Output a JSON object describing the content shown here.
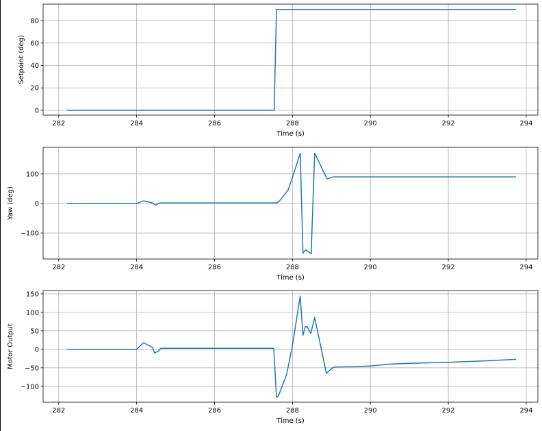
{
  "chart_data": [
    {
      "type": "line",
      "xlabel": "Time (s)",
      "ylabel": "Setpoint (deg)",
      "xlim": [
        281.6,
        294.3
      ],
      "ylim": [
        -4.3,
        94.7
      ],
      "xticks": [
        282,
        284,
        286,
        288,
        290,
        292,
        294
      ],
      "yticks": [
        0,
        20,
        40,
        60,
        80
      ],
      "grid": true,
      "color": "#1f77b4",
      "x": [
        282.21,
        287.53,
        287.59,
        293.74
      ],
      "y": [
        0,
        0,
        90,
        90
      ]
    },
    {
      "type": "line",
      "xlabel": "Time (s)",
      "ylabel": "Yaw (deg)",
      "xlim": [
        281.6,
        294.3
      ],
      "ylim": [
        -188,
        190
      ],
      "xticks": [
        282,
        284,
        286,
        288,
        290,
        292,
        294
      ],
      "yticks": [
        -100,
        0,
        100
      ],
      "grid": true,
      "color": "#1f77b4",
      "x": [
        282.21,
        284.0,
        284.18,
        284.41,
        284.48,
        284.6,
        287.6,
        287.67,
        287.89,
        288.03,
        288.2,
        288.27,
        288.34,
        288.48,
        288.57,
        288.89,
        289.05,
        293.74
      ],
      "y": [
        0,
        0,
        9,
        2,
        -6,
        2,
        2,
        9,
        46,
        101,
        170,
        -168,
        -157,
        -170,
        170,
        83,
        90,
        90
      ]
    },
    {
      "type": "line",
      "xlabel": "Time (s)",
      "ylabel": "Motor Output",
      "xlim": [
        281.6,
        294.3
      ],
      "ylim": [
        -143,
        159
      ],
      "xticks": [
        282,
        284,
        286,
        288,
        290,
        292,
        294
      ],
      "yticks": [
        -100,
        -50,
        0,
        50,
        100,
        150
      ],
      "grid": true,
      "color": "#1f77b4",
      "x": [
        282.21,
        284.0,
        284.18,
        284.41,
        284.46,
        284.57,
        284.62,
        287.52,
        287.59,
        287.64,
        287.85,
        287.99,
        288.2,
        288.27,
        288.33,
        288.38,
        288.47,
        288.57,
        288.87,
        289.05,
        289.5,
        290.0,
        290.5,
        291.0,
        292.0,
        293.0,
        293.74
      ],
      "y": [
        0,
        0,
        18,
        5,
        -10,
        -4,
        3,
        3,
        -130,
        -126,
        -68,
        5,
        144,
        38,
        61,
        61,
        43,
        86,
        -65,
        -48,
        -47,
        -45,
        -40,
        -38,
        -35,
        -31,
        -27
      ]
    }
  ]
}
